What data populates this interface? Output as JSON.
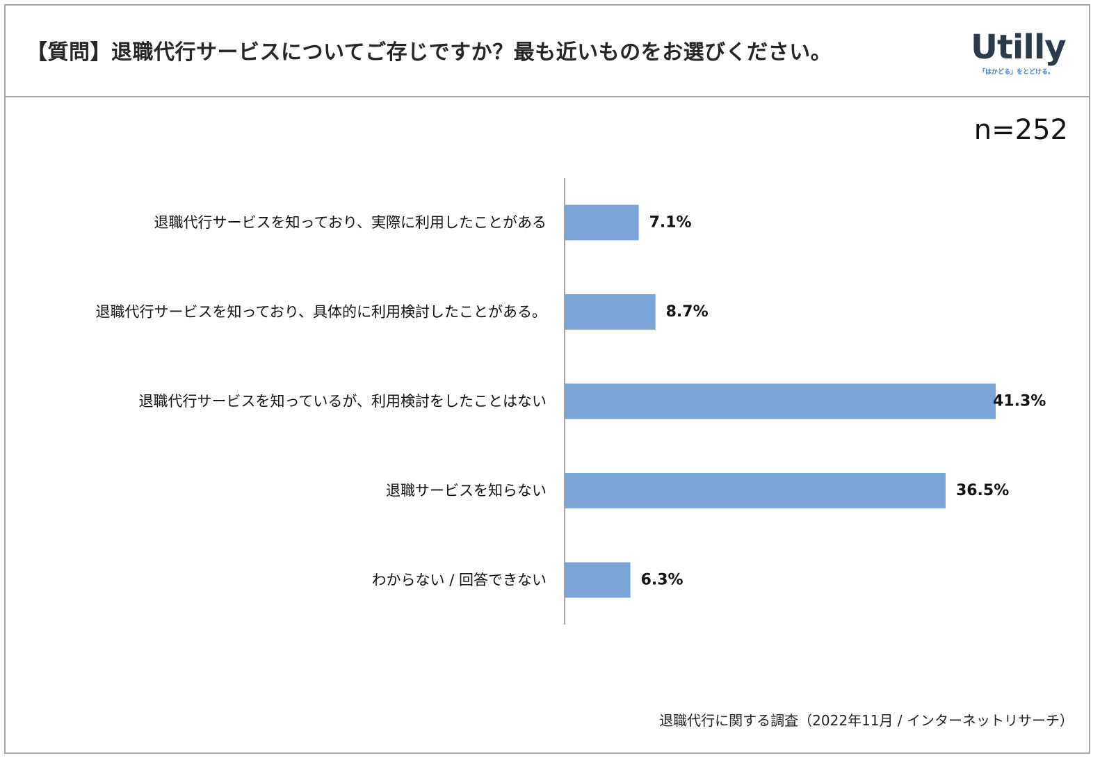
{
  "header": {
    "question": "【質問】退職代行サービスについてご存じですか？最も近いものをお選びください。",
    "logo_text": "Utilly",
    "logo_tagline": "「はかどる」をとどける。"
  },
  "sample_size": "n=252",
  "footer": {
    "source": "退職代行に関する調査（2022年11月 / インターネットリサーチ）"
  },
  "colors": {
    "bar": "#7ba5d6",
    "axis": "#888888",
    "frame": "#a6a6a6"
  },
  "chart_data": {
    "type": "bar",
    "orientation": "horizontal",
    "categories": [
      "退職代行サービスを知っており、実際に利用したことがある",
      "退職代行サービスを知っており、具体的に利用検討したことがある。",
      "退職代行サービスを知っているが、利用検討をしたことはない",
      "退職サービスを知らない",
      "わからない / 回答できない"
    ],
    "values": [
      7.1,
      8.7,
      41.3,
      36.5,
      6.3
    ],
    "data_labels": [
      "7.1%",
      "8.7%",
      "41.3%",
      "36.5%",
      "6.3%"
    ],
    "value_unit": "%",
    "xlim": [
      0,
      45
    ],
    "grid": false,
    "legend": "none"
  }
}
